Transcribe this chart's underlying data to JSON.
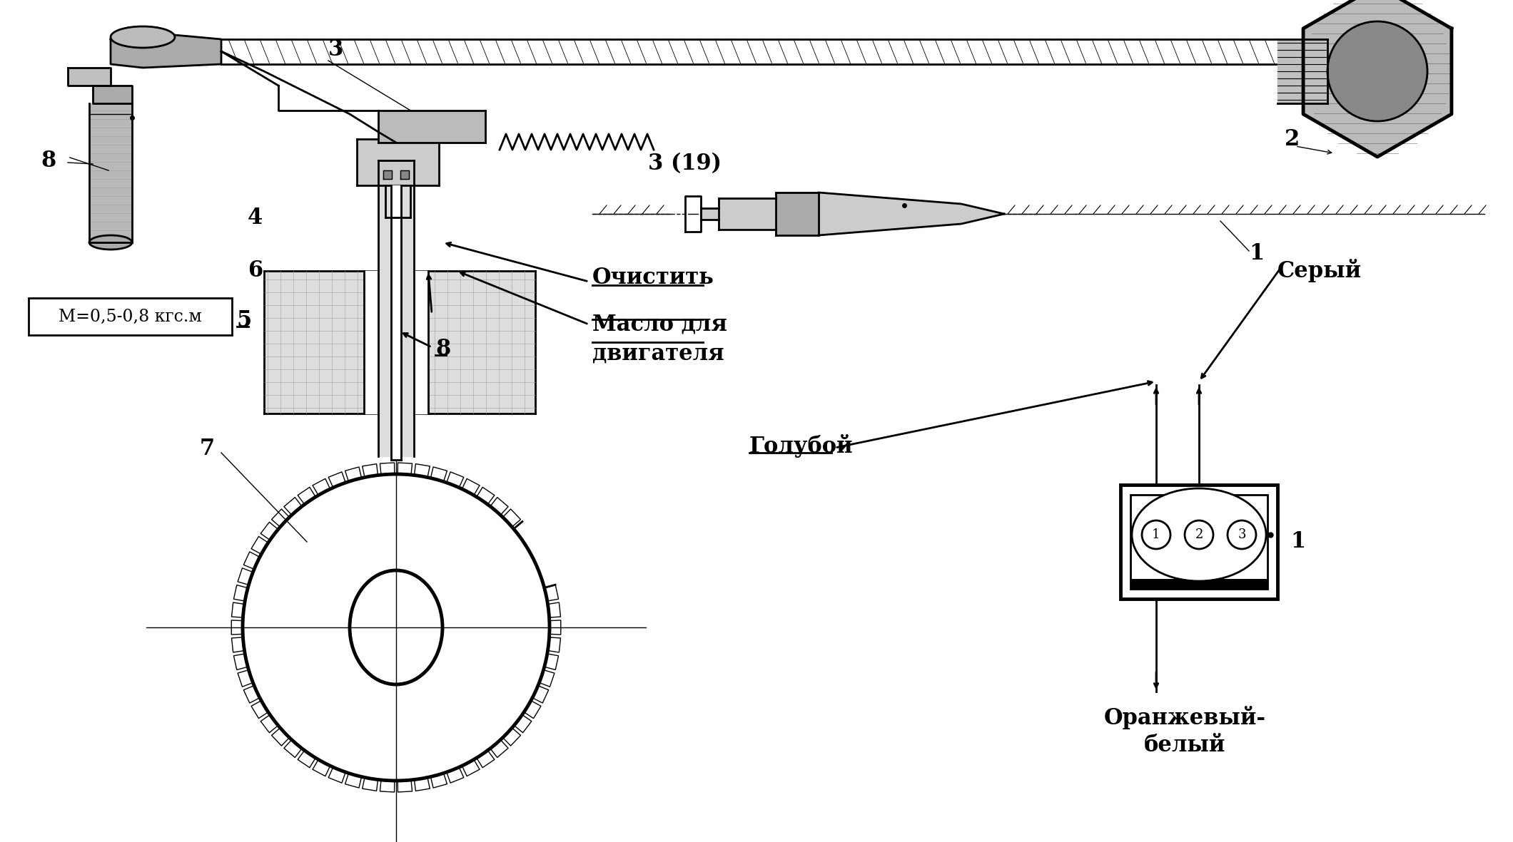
{
  "bg_color": "#ffffff",
  "lc": "#000000",
  "fig_w": 21.2,
  "fig_h": 11.81,
  "dpi": 100,
  "labels": {
    "l3": "3",
    "l2": "2",
    "l319": "3 (19)",
    "l1r": "1",
    "l8": "8",
    "l4": "4",
    "lM": "M=0,5-0,8 кгс.м",
    "l5": "5",
    "l6": "6",
    "l7": "7",
    "l8b": "8",
    "lclean": "Очистить",
    "loil": "Масло для\nдвигателя",
    "lblue": "Голубой",
    "lgrey": "Серый",
    "lorange": "Оранжевый-\nбелый",
    "l1c": "1"
  }
}
